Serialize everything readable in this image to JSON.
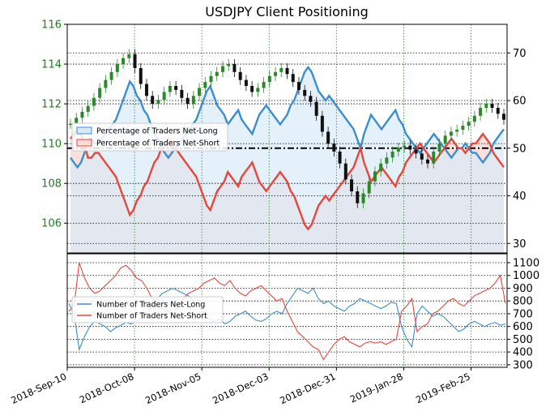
{
  "colors": {
    "net_long": "#3b8ed0",
    "net_short": "#e8463a",
    "price_up": "#2a8a2a",
    "price_down": "#111111",
    "long_fill": "#d8eaf8",
    "short_fill": "#fbdcd8",
    "left_axis_text": "#1a7f1a"
  },
  "chart_data": [
    {
      "type": "line",
      "title": "USDJPY Client Positioning",
      "left_axis": {
        "ticks": [
          "106",
          "108",
          "110",
          "112",
          "114",
          "116"
        ],
        "range": [
          104.5,
          116
        ]
      },
      "right_axis": {
        "ticks": [
          "30",
          "40",
          "50",
          "60",
          "70"
        ],
        "range": [
          28,
          76
        ]
      },
      "reference_line": {
        "axis": "right",
        "value": 50,
        "style": "dash-dot"
      },
      "grid": "dotted",
      "legend": {
        "placement": "center-left",
        "entries": [
          "Percentage of Traders Net-Long",
          "Percentage of Traders Net-Short"
        ]
      },
      "series": [
        {
          "name": "Percentage of Traders Net-Long",
          "axis": "right",
          "values": [
            48,
            47,
            46,
            47,
            49,
            52,
            52,
            51,
            51,
            52,
            53,
            54,
            55,
            56,
            58,
            60,
            62,
            64,
            63,
            61,
            60,
            58,
            57,
            55,
            53,
            52,
            50,
            49,
            48,
            49,
            50,
            51,
            52,
            53,
            54,
            55,
            56,
            58,
            60,
            62,
            63,
            61,
            59,
            58,
            57,
            55,
            56,
            57,
            58,
            56,
            55,
            54,
            53,
            55,
            57,
            58,
            59,
            58,
            57,
            56,
            55,
            56,
            57,
            59,
            60,
            62,
            64,
            66,
            67,
            66,
            64,
            62,
            61,
            60,
            61,
            60,
            59,
            58,
            57,
            56,
            55,
            54,
            52,
            50,
            53,
            55,
            57,
            56,
            55,
            54,
            55,
            56,
            57,
            58,
            56,
            55,
            53,
            52,
            51,
            50,
            49,
            50,
            51,
            52,
            53,
            52,
            51,
            50,
            49,
            48,
            49,
            50,
            50,
            51,
            50,
            49,
            49,
            48,
            47,
            48,
            49,
            51,
            52,
            53,
            54
          ]
        },
        {
          "name": "Percentage of Traders Net-Short",
          "axis": "right",
          "values": [
            52,
            53,
            54,
            53,
            51,
            48,
            48,
            49,
            49,
            48,
            47,
            46,
            45,
            44,
            42,
            40,
            38,
            36,
            37,
            39,
            40,
            42,
            43,
            45,
            47,
            48,
            50,
            51,
            52,
            51,
            50,
            49,
            48,
            47,
            46,
            45,
            44,
            42,
            40,
            38,
            37,
            39,
            41,
            42,
            43,
            45,
            44,
            43,
            42,
            44,
            45,
            46,
            47,
            45,
            43,
            42,
            41,
            42,
            43,
            44,
            45,
            44,
            43,
            41,
            40,
            38,
            36,
            34,
            33,
            34,
            36,
            38,
            39,
            40,
            39,
            40,
            41,
            42,
            43,
            44,
            45,
            46,
            48,
            50,
            47,
            45,
            43,
            44,
            45,
            46,
            45,
            44,
            43,
            42,
            44,
            45,
            47,
            48,
            49,
            50,
            51,
            50,
            49,
            48,
            47,
            48,
            49,
            50,
            51,
            52,
            51,
            50,
            50,
            49,
            50,
            51,
            51,
            52,
            53,
            52,
            51,
            49,
            48,
            47,
            46
          ]
        },
        {
          "name": "USDJPY",
          "axis": "left",
          "values": [
            111.0,
            111.3,
            111.6,
            111.9,
            112.3,
            112.8,
            113.2,
            113.6,
            114.0,
            114.3,
            114.5,
            113.8,
            113.0,
            112.4,
            112.0,
            112.2,
            112.6,
            112.9,
            112.7,
            112.3,
            112.0,
            112.4,
            112.8,
            113.1,
            113.4,
            113.6,
            113.9,
            114.0,
            113.6,
            113.2,
            112.9,
            112.6,
            112.8,
            113.1,
            113.4,
            113.6,
            113.8,
            113.5,
            113.1,
            112.7,
            112.4,
            112.1,
            111.4,
            110.6,
            110.0,
            109.6,
            109.0,
            108.2,
            107.6,
            107.0,
            107.5,
            108.1,
            108.6,
            109.0,
            109.3,
            109.6,
            109.8,
            109.9,
            109.7,
            109.5,
            109.2,
            109.0,
            109.6,
            110.0,
            110.4,
            110.6,
            110.7,
            110.9,
            111.1,
            111.4,
            111.8,
            112.0,
            111.8,
            111.5,
            111.2
          ]
        }
      ]
    },
    {
      "type": "line",
      "right_axis": {
        "ticks": [
          "300",
          "400",
          "500",
          "600",
          "700",
          "800",
          "900",
          "1000",
          "1100"
        ],
        "range": [
          280,
          1170
        ]
      },
      "grid": "dotted",
      "legend": {
        "placement": "center-left",
        "entries": [
          "Number of Traders Net-Long",
          "Number of Traders Net-Short"
        ]
      },
      "series": [
        {
          "name": "Number of Traders Net-Long",
          "axis": "right",
          "values": [
            780,
            700,
            420,
            520,
            600,
            640,
            620,
            600,
            560,
            590,
            610,
            630,
            620,
            640,
            660,
            700,
            760,
            820,
            860,
            880,
            900,
            880,
            860,
            840,
            800,
            760,
            700,
            660,
            640,
            660,
            620,
            640,
            680,
            700,
            720,
            680,
            650,
            640,
            660,
            700,
            720,
            700,
            780,
            840,
            900,
            880,
            860,
            900,
            820,
            780,
            800,
            760,
            740,
            720,
            760,
            780,
            820,
            800,
            780,
            760,
            740,
            760,
            790,
            780,
            600,
            500,
            440,
            700,
            760,
            720,
            680,
            700,
            680,
            640,
            600,
            560,
            580,
            620,
            640,
            620,
            600,
            620,
            630,
            610,
            620
          ]
        },
        {
          "name": "Number of Traders Net-Short",
          "axis": "right",
          "values": [
            720,
            760,
            1100,
            980,
            900,
            860,
            880,
            920,
            960,
            1000,
            1060,
            1080,
            1040,
            980,
            960,
            900,
            820,
            760,
            740,
            720,
            700,
            760,
            820,
            860,
            880,
            900,
            940,
            960,
            980,
            940,
            920,
            960,
            900,
            860,
            840,
            880,
            900,
            920,
            880,
            840,
            800,
            820,
            720,
            640,
            560,
            520,
            480,
            440,
            420,
            340,
            400,
            460,
            500,
            520,
            480,
            460,
            440,
            470,
            480,
            470,
            480,
            460,
            480,
            500,
            720,
            760,
            820,
            560,
            600,
            620,
            700,
            720,
            760,
            800,
            820,
            780,
            760,
            800,
            840,
            860,
            880,
            900,
            940,
            1000,
            780
          ]
        }
      ]
    }
  ],
  "x_axis": {
    "ticks": [
      "2018-Sep-10",
      "2018-Oct-08",
      "2018-Nov-05",
      "2018-Dec-03",
      "2018-Dec-31",
      "2019-Jan-28",
      "2019-Feb-25"
    ]
  }
}
